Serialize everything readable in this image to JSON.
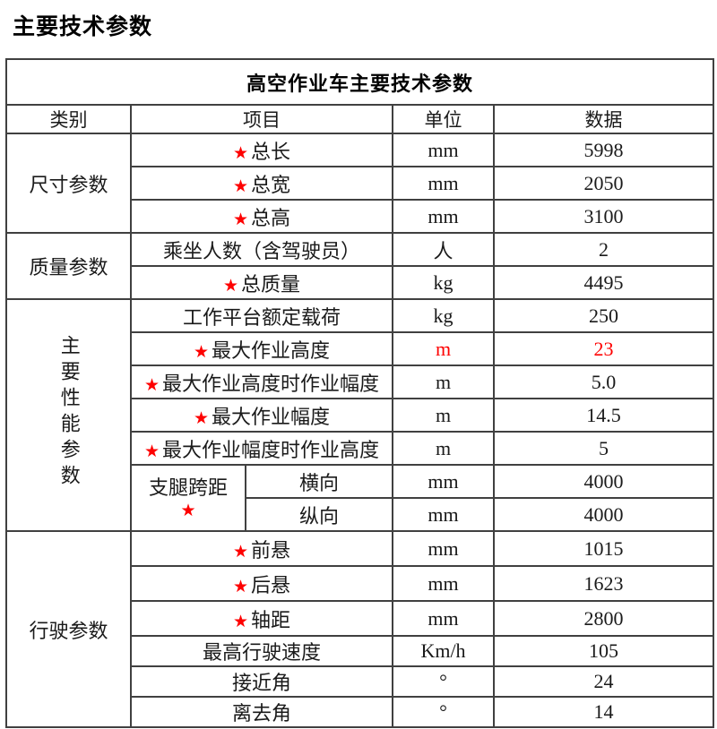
{
  "page_title": "主要技术参数",
  "colors": {
    "accent_red": "#fe0000",
    "grid_line": "#404040"
  },
  "table": {
    "title": "高空作业车主要技术参数",
    "star_glyph": "★",
    "headers": {
      "category": "类别",
      "item": "项目",
      "unit": "单位",
      "value": "数据"
    },
    "sections": [
      {
        "category": "尺寸参数",
        "vertical": false,
        "rows": [
          {
            "star": true,
            "item": "总长",
            "unit": "mm",
            "value": "5998"
          },
          {
            "star": true,
            "item": "总宽",
            "unit": "mm",
            "value": "2050"
          },
          {
            "star": true,
            "item": "总高",
            "unit": "mm",
            "value": "3100"
          }
        ]
      },
      {
        "category": "质量参数",
        "vertical": false,
        "rows": [
          {
            "star": false,
            "item": "乘坐人数（含驾驶员）",
            "unit": "人",
            "value": "2"
          },
          {
            "star": true,
            "item": "总质量",
            "unit": "kg",
            "value": "4495"
          }
        ]
      },
      {
        "category": "主要性能参数",
        "vertical": true,
        "rows": [
          {
            "star": false,
            "item": "工作平台额定载荷",
            "unit": "kg",
            "value": "250"
          },
          {
            "star": true,
            "item": "最大作业高度",
            "unit": "m",
            "value": "23",
            "red": true
          },
          {
            "star": true,
            "item": "最大作业高度时作业幅度",
            "unit": "m",
            "value": "5.0"
          },
          {
            "star": true,
            "item": "最大作业幅度",
            "unit": "m",
            "value": "14.5"
          },
          {
            "star": true,
            "item": "最大作业幅度时作业高度",
            "unit": "m",
            "value": "5"
          },
          {
            "group": {
              "label": "支腿跨距",
              "star": true,
              "span": 2
            },
            "star": false,
            "item": "横向",
            "unit": "mm",
            "value": "4000"
          },
          {
            "star": false,
            "item": "纵向",
            "unit": "mm",
            "value": "4000"
          }
        ]
      },
      {
        "category": "行驶参数",
        "vertical": false,
        "rows": [
          {
            "star": true,
            "item": "前悬",
            "unit": "mm",
            "value": "1015"
          },
          {
            "star": true,
            "item": "后悬",
            "unit": "mm",
            "value": "1623"
          },
          {
            "star": true,
            "item": "轴距",
            "unit": "mm",
            "value": "2800"
          },
          {
            "star": false,
            "item": "最高行驶速度",
            "unit": "Km/h",
            "value": "105"
          },
          {
            "star": false,
            "item": "接近角",
            "unit": "°",
            "value": "24"
          },
          {
            "star": false,
            "item": "离去角",
            "unit": "°",
            "value": "14"
          }
        ]
      }
    ]
  }
}
